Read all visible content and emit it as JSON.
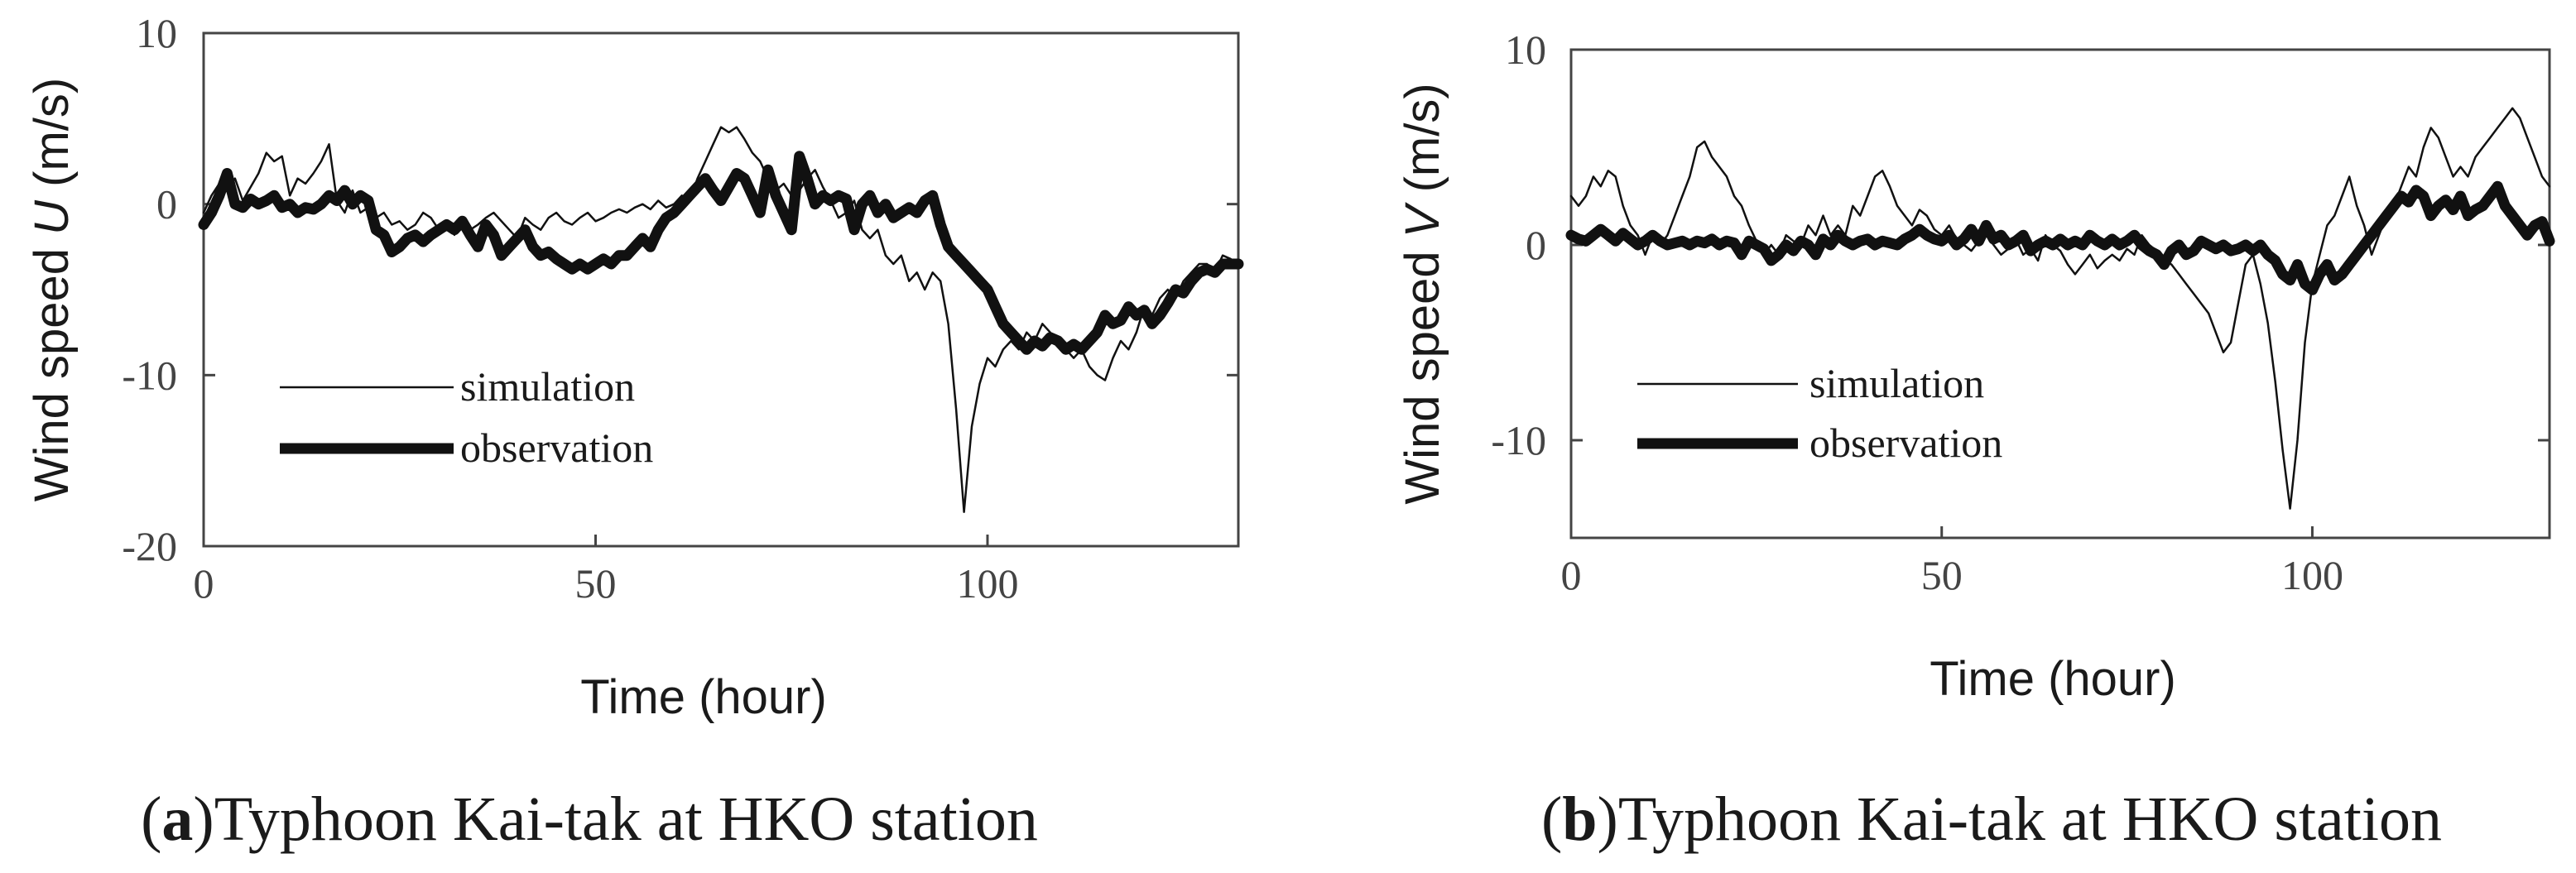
{
  "chart_data": [
    {
      "type": "line",
      "panel": "a",
      "caption_letter": "a",
      "caption_text": ")Typhoon Kai-tak at HKO station",
      "ylabel_prefix": "Wind speed ",
      "ylabel_var": "U",
      "ylabel_suffix": " (m/s)",
      "xlabel": "Time (hour)",
      "xlim": [
        0,
        132
      ],
      "ylim": [
        -20,
        10
      ],
      "xticks": [
        0,
        50,
        100
      ],
      "yticks": [
        10,
        0,
        -10,
        -20
      ],
      "legend_position": "lower-left",
      "series": [
        {
          "name": "simulation",
          "width": 2.5,
          "x": [
            0,
            1,
            2,
            3,
            4,
            5,
            6,
            7,
            8,
            9,
            10,
            11,
            12,
            13,
            14,
            15,
            16,
            17,
            18,
            19,
            20,
            21,
            22,
            23,
            24,
            25,
            26,
            27,
            28,
            29,
            30,
            31,
            32,
            33,
            34,
            35,
            36,
            37,
            38,
            39,
            40,
            41,
            42,
            43,
            44,
            45,
            46,
            47,
            48,
            49,
            50,
            51,
            52,
            53,
            54,
            55,
            56,
            57,
            58,
            59,
            60,
            61,
            62,
            63,
            64,
            65,
            66,
            67,
            68,
            69,
            70,
            71,
            72,
            73,
            74,
            75,
            76,
            77,
            78,
            79,
            80,
            81,
            82,
            83,
            84,
            85,
            86,
            87,
            88,
            89,
            90,
            91,
            92,
            93,
            94,
            95,
            96,
            97,
            98,
            99,
            100,
            101,
            102,
            103,
            104,
            105,
            106,
            107,
            108,
            109,
            110,
            111,
            112,
            113,
            114,
            115,
            116,
            117,
            118,
            119,
            120,
            121,
            122,
            123,
            124,
            125,
            126,
            127,
            128,
            129,
            130,
            131,
            132
          ],
          "values": [
            -0.5,
            0.5,
            1.2,
            0.8,
            1.5,
            0.2,
            1.0,
            1.8,
            3.0,
            2.5,
            2.8,
            0.5,
            1.5,
            1.2,
            1.8,
            2.5,
            3.5,
            0.2,
            -0.5,
            0.8,
            -0.5,
            -0.2,
            -0.8,
            -0.5,
            -1.2,
            -1.0,
            -1.5,
            -1.2,
            -0.5,
            -0.8,
            -1.5,
            -1.2,
            -1.8,
            -0.8,
            -1.5,
            -1.2,
            -0.8,
            -0.5,
            -1.0,
            -1.5,
            -2.0,
            -0.8,
            -1.2,
            -1.5,
            -0.8,
            -0.5,
            -1.0,
            -1.2,
            -0.8,
            -0.5,
            -1.0,
            -0.8,
            -0.5,
            -0.3,
            -0.5,
            -0.2,
            0.0,
            -0.3,
            0.2,
            -0.2,
            0.0,
            0.5,
            0.2,
            1.5,
            2.5,
            3.5,
            4.5,
            4.2,
            4.5,
            3.8,
            3.0,
            2.5,
            1.5,
            0.8,
            1.2,
            0.5,
            0.8,
            1.5,
            2.0,
            1.0,
            0.2,
            -0.8,
            -0.5,
            0.2,
            -1.5,
            -2.0,
            -1.5,
            -3.0,
            -3.5,
            -3.0,
            -4.5,
            -4.0,
            -5.0,
            -4.0,
            -4.5,
            -7.0,
            -12.0,
            -18.0,
            -13.0,
            -10.5,
            -9.0,
            -9.5,
            -8.5,
            -8.0,
            -8.5,
            -7.5,
            -8.0,
            -7.0,
            -7.5,
            -8.0,
            -8.5,
            -9.0,
            -8.5,
            -9.5,
            -10.0,
            -10.3,
            -9.0,
            -8.0,
            -8.5,
            -7.5,
            -6.0,
            -6.5,
            -5.5,
            -5.0,
            -5.5,
            -4.5,
            -4.0,
            -3.5,
            -3.5,
            -4.0,
            -3.0,
            -3.2,
            -3.5
          ]
        },
        {
          "name": "observation",
          "width": 13,
          "x": [
            0,
            1,
            2,
            3,
            4,
            5,
            6,
            7,
            8,
            9,
            10,
            11,
            12,
            13,
            14,
            15,
            16,
            17,
            18,
            19,
            20,
            21,
            22,
            23,
            24,
            25,
            26,
            27,
            28,
            29,
            30,
            31,
            32,
            33,
            34,
            35,
            36,
            37,
            38,
            39,
            40,
            41,
            42,
            43,
            44,
            45,
            46,
            47,
            48,
            49,
            50,
            51,
            52,
            53,
            54,
            55,
            56,
            57,
            58,
            59,
            60,
            61,
            62,
            63,
            64,
            65,
            66,
            67,
            68,
            69,
            70,
            71,
            72,
            73,
            74,
            75,
            76,
            77,
            78,
            79,
            80,
            81,
            82,
            83,
            84,
            85,
            86,
            87,
            88,
            89,
            90,
            91,
            92,
            93,
            94,
            95,
            96,
            97,
            98,
            99,
            100,
            101,
            102,
            103,
            104,
            105,
            106,
            107,
            108,
            109,
            110,
            111,
            112,
            113,
            114,
            115,
            116,
            117,
            118,
            119,
            120,
            121,
            122,
            123,
            124,
            125,
            126,
            127,
            128,
            129,
            130,
            131,
            132
          ],
          "values": [
            -1.2,
            -0.5,
            0.5,
            1.8,
            0.0,
            -0.2,
            0.3,
            0.0,
            0.2,
            0.5,
            -0.2,
            0.0,
            -0.5,
            -0.2,
            -0.3,
            0.0,
            0.5,
            0.2,
            0.8,
            0.0,
            0.5,
            0.2,
            -1.5,
            -1.8,
            -2.8,
            -2.5,
            -2.0,
            -1.8,
            -2.2,
            -1.8,
            -1.5,
            -1.2,
            -1.5,
            -1.0,
            -1.8,
            -2.5,
            -1.2,
            -1.8,
            -3.0,
            -2.5,
            -2.0,
            -1.5,
            -2.5,
            -3.0,
            -2.8,
            -3.2,
            -3.5,
            -3.8,
            -3.5,
            -3.8,
            -3.5,
            -3.2,
            -3.5,
            -3.0,
            -3.0,
            -2.5,
            -2.0,
            -2.5,
            -1.5,
            -0.8,
            -0.5,
            0.0,
            0.5,
            1.0,
            1.5,
            0.8,
            0.2,
            1.0,
            1.8,
            1.5,
            0.5,
            -0.5,
            2.0,
            0.5,
            -0.5,
            -1.5,
            2.8,
            1.5,
            0.0,
            0.5,
            0.2,
            0.5,
            0.3,
            -1.5,
            0.0,
            0.5,
            -0.5,
            0.0,
            -0.8,
            -0.5,
            -0.2,
            -0.5,
            0.2,
            0.5,
            -1.2,
            -2.5,
            -3.0,
            -3.5,
            -4.0,
            -4.5,
            -5.0,
            -6.0,
            -7.0,
            -7.5,
            -8.0,
            -8.5,
            -8.0,
            -8.3,
            -7.8,
            -8.0,
            -8.5,
            -8.2,
            -8.5,
            -8.0,
            -7.5,
            -6.5,
            -7.0,
            -6.8,
            -6.0,
            -6.5,
            -6.2,
            -7.0,
            -6.5,
            -5.8,
            -5.0,
            -5.2,
            -4.5,
            -4.0,
            -3.8,
            -4.0,
            -3.5,
            -3.5,
            -3.5
          ]
        }
      ]
    },
    {
      "type": "line",
      "panel": "b",
      "caption_letter": "b",
      "caption_text": ")Typhoon Kai-tak at HKO station",
      "ylabel_prefix": "Wind speed ",
      "ylabel_var": "V",
      "ylabel_suffix": " (m/s)",
      "xlabel": "Time (hour)",
      "xlim": [
        0,
        132
      ],
      "ylim": [
        -15,
        10
      ],
      "xticks": [
        0,
        50,
        100
      ],
      "yticks": [
        10,
        0,
        -10
      ],
      "legend_position": "lower-left",
      "series": [
        {
          "name": "simulation",
          "width": 2.5,
          "x": [
            0,
            1,
            2,
            3,
            4,
            5,
            6,
            7,
            8,
            9,
            10,
            11,
            12,
            13,
            14,
            15,
            16,
            17,
            18,
            19,
            20,
            21,
            22,
            23,
            24,
            25,
            26,
            27,
            28,
            29,
            30,
            31,
            32,
            33,
            34,
            35,
            36,
            37,
            38,
            39,
            40,
            41,
            42,
            43,
            44,
            45,
            46,
            47,
            48,
            49,
            50,
            51,
            52,
            53,
            54,
            55,
            56,
            57,
            58,
            59,
            60,
            61,
            62,
            63,
            64,
            65,
            66,
            67,
            68,
            69,
            70,
            71,
            72,
            73,
            74,
            75,
            76,
            77,
            78,
            79,
            80,
            81,
            82,
            83,
            84,
            85,
            86,
            87,
            88,
            89,
            90,
            91,
            92,
            93,
            94,
            95,
            96,
            97,
            98,
            99,
            100,
            101,
            102,
            103,
            104,
            105,
            106,
            107,
            108,
            109,
            110,
            111,
            112,
            113,
            114,
            115,
            116,
            117,
            118,
            119,
            120,
            121,
            122,
            123,
            124,
            125,
            126,
            127,
            128,
            129,
            130,
            131,
            132
          ],
          "values": [
            2.5,
            2.0,
            2.5,
            3.5,
            3.0,
            3.8,
            3.5,
            2.0,
            1.0,
            0.5,
            -0.5,
            0.5,
            0.0,
            0.5,
            1.5,
            2.5,
            3.5,
            5.0,
            5.3,
            4.5,
            4.0,
            3.5,
            2.5,
            2.0,
            1.0,
            0.2,
            -0.5,
            0.0,
            -0.5,
            0.5,
            0.2,
            0.0,
            1.0,
            0.5,
            1.5,
            0.5,
            1.0,
            0.5,
            2.0,
            1.5,
            2.5,
            3.5,
            3.8,
            3.0,
            2.0,
            1.5,
            1.0,
            1.8,
            1.5,
            0.8,
            0.5,
            1.0,
            0.3,
            0.0,
            -0.3,
            0.2,
            0.5,
            0.0,
            -0.5,
            -0.2,
            0.3,
            -0.5,
            -0.2,
            -0.8,
            0.5,
            0.0,
            -0.3,
            -1.0,
            -1.5,
            -1.0,
            -0.5,
            -1.2,
            -0.8,
            -0.5,
            -0.8,
            -0.2,
            -0.5,
            0.5,
            0.0,
            -0.3,
            -0.8,
            -1.0,
            -1.5,
            -2.0,
            -2.5,
            -3.0,
            -3.5,
            -4.5,
            -5.5,
            -5.0,
            -3.0,
            -1.0,
            -0.5,
            -2.0,
            -4.0,
            -7.0,
            -10.5,
            -13.5,
            -10.0,
            -5.0,
            -2.0,
            -0.5,
            1.0,
            1.5,
            2.5,
            3.5,
            2.0,
            1.0,
            -0.5,
            0.5,
            1.5,
            2.0,
            3.0,
            4.0,
            3.5,
            5.0,
            6.0,
            5.5,
            4.5,
            3.5,
            4.0,
            3.5,
            4.5,
            5.0,
            5.5,
            6.0,
            6.5,
            7.0,
            6.5,
            5.5,
            4.5,
            3.5,
            3.0
          ]
        },
        {
          "name": "observation",
          "width": 13,
          "x": [
            0,
            1,
            2,
            3,
            4,
            5,
            6,
            7,
            8,
            9,
            10,
            11,
            12,
            13,
            14,
            15,
            16,
            17,
            18,
            19,
            20,
            21,
            22,
            23,
            24,
            25,
            26,
            27,
            28,
            29,
            30,
            31,
            32,
            33,
            34,
            35,
            36,
            37,
            38,
            39,
            40,
            41,
            42,
            43,
            44,
            45,
            46,
            47,
            48,
            49,
            50,
            51,
            52,
            53,
            54,
            55,
            56,
            57,
            58,
            59,
            60,
            61,
            62,
            63,
            64,
            65,
            66,
            67,
            68,
            69,
            70,
            71,
            72,
            73,
            74,
            75,
            76,
            77,
            78,
            79,
            80,
            81,
            82,
            83,
            84,
            85,
            86,
            87,
            88,
            89,
            90,
            91,
            92,
            93,
            94,
            95,
            96,
            97,
            98,
            99,
            100,
            101,
            102,
            103,
            104,
            105,
            106,
            107,
            108,
            109,
            110,
            111,
            112,
            113,
            114,
            115,
            116,
            117,
            118,
            119,
            120,
            121,
            122,
            123,
            124,
            125,
            126,
            127,
            128,
            129,
            130,
            131,
            132
          ],
          "values": [
            0.5,
            0.3,
            0.2,
            0.5,
            0.8,
            0.5,
            0.2,
            0.6,
            0.3,
            0.0,
            0.2,
            0.5,
            0.2,
            0.0,
            0.1,
            0.2,
            0.0,
            0.2,
            0.1,
            0.3,
            0.0,
            0.2,
            0.1,
            -0.5,
            0.2,
            0.0,
            -0.2,
            -0.8,
            -0.5,
            0.0,
            -0.3,
            0.2,
            0.0,
            -0.5,
            0.3,
            0.0,
            0.5,
            0.2,
            0.0,
            0.2,
            0.3,
            0.0,
            0.2,
            0.1,
            0.0,
            0.3,
            0.5,
            0.8,
            0.5,
            0.3,
            0.2,
            0.5,
            0.0,
            0.3,
            0.8,
            0.2,
            1.0,
            0.3,
            0.5,
            0.0,
            0.2,
            0.5,
            -0.3,
            0.0,
            0.2,
            0.0,
            0.3,
            0.0,
            0.2,
            0.0,
            0.5,
            0.2,
            0.0,
            0.3,
            0.0,
            0.2,
            0.5,
            0.0,
            -0.3,
            -0.5,
            -1.0,
            -0.3,
            0.0,
            -0.5,
            -0.3,
            0.2,
            0.0,
            -0.2,
            0.0,
            -0.3,
            -0.2,
            0.0,
            -0.3,
            0.0,
            -0.5,
            -0.8,
            -1.5,
            -1.8,
            -1.0,
            -2.0,
            -2.3,
            -1.5,
            -1.0,
            -1.8,
            -1.5,
            -1.0,
            -0.5,
            0.0,
            0.5,
            1.0,
            1.5,
            2.0,
            2.5,
            2.2,
            2.8,
            2.5,
            1.5,
            2.0,
            2.3,
            1.8,
            2.5,
            1.5,
            1.8,
            2.0,
            2.5,
            3.0,
            2.0,
            1.5,
            1.0,
            0.5,
            1.0,
            1.2,
            0.2
          ]
        }
      ]
    }
  ]
}
